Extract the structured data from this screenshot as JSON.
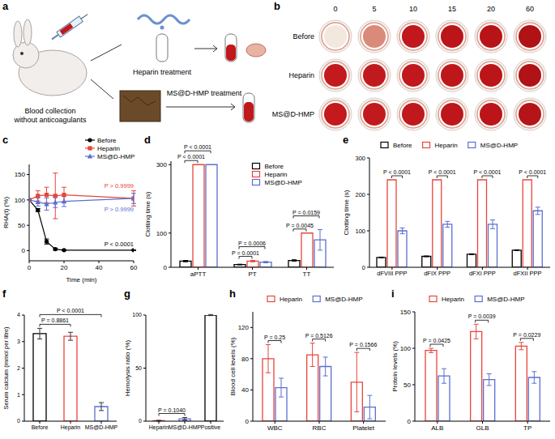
{
  "panels": {
    "a": {
      "panel": "a",
      "top_label": "Heparin treatment",
      "bottom_label": "MS@D-HMP treatment",
      "source_label": [
        "Blood collection",
        "without anticoagulants"
      ]
    },
    "b": {
      "panel": "b",
      "columns": [
        0,
        5,
        10,
        15,
        20,
        60
      ],
      "rows": [
        "Before",
        "Heparin",
        "MS@D-HMP"
      ]
    }
  },
  "chart_data": [
    {
      "panel": "c",
      "type": "line",
      "x_label": "Time (min)",
      "y_label": "RHA(t) (%)",
      "x": [
        0,
        5,
        10,
        15,
        20,
        60
      ],
      "xlim": [
        0,
        60
      ],
      "xticks": [
        0,
        20,
        40,
        60
      ],
      "ylim": [
        -20,
        170
      ],
      "yticks": [
        0,
        50,
        100,
        150
      ],
      "legend": "top-right",
      "series": [
        {
          "name": "Before",
          "color": "#000000",
          "marker": "circle",
          "values": [
            100,
            80,
            18,
            3,
            1,
            1
          ],
          "errors": [
            0,
            3,
            5,
            2,
            1,
            1
          ],
          "annotation": "P < 0.0001"
        },
        {
          "name": "Heparin",
          "color": "#e8453c",
          "marker": "square",
          "values": [
            100,
            108,
            110,
            108,
            110,
            103
          ],
          "errors": [
            0,
            10,
            15,
            45,
            15,
            15
          ],
          "annotation": "P > 0.9999"
        },
        {
          "name": "MS@D-HMP",
          "color": "#5b6fd0",
          "marker": "triangle",
          "values": [
            100,
            96,
            92,
            95,
            97,
            103
          ],
          "errors": [
            0,
            8,
            12,
            10,
            10,
            10
          ],
          "annotation": "P > 0.9999"
        }
      ]
    },
    {
      "panel": "d",
      "type": "bar",
      "y_label": "Clotting time (s)",
      "categories": [
        "aPTT",
        "PT",
        "TT"
      ],
      "ylim": [
        0,
        310
      ],
      "yticks": [
        0,
        100,
        300
      ],
      "legend": "top",
      "series": [
        {
          "name": "Before",
          "color": "#000000",
          "values": [
            18,
            8,
            20
          ],
          "errors": [
            2,
            1,
            2
          ]
        },
        {
          "name": "Heparin",
          "color": "#e8453c",
          "values": [
            300,
            18,
            100
          ],
          "errors": [
            0,
            2,
            0
          ]
        },
        {
          "name": "MS@D-HMP",
          "color": "#5b6fd0",
          "values": [
            300,
            15,
            80
          ],
          "errors": [
            0,
            2,
            30
          ]
        }
      ],
      "comparisons": [
        {
          "category": "aPTT",
          "pair": [
            "Before",
            "Heparin"
          ],
          "text": "P < 0.0001"
        },
        {
          "category": "aPTT",
          "pair": [
            "Before",
            "MS@D-HMP"
          ],
          "text": "P < 0.0001"
        },
        {
          "category": "PT",
          "pair": [
            "Before",
            "Heparin"
          ],
          "text": "P = 0.0001"
        },
        {
          "category": "PT",
          "pair": [
            "Before",
            "MS@D-HMP"
          ],
          "text": "P = 0.0006"
        },
        {
          "category": "TT",
          "pair": [
            "Before",
            "Heparin"
          ],
          "text": "P = 0.0045"
        },
        {
          "category": "TT",
          "pair": [
            "Before",
            "MS@D-HMP"
          ],
          "text": "P = 0.0159"
        }
      ]
    },
    {
      "panel": "e",
      "type": "bar",
      "y_label": "Clotting time (s)",
      "categories": [
        "dFVIII PPP",
        "dFIX PPP",
        "dFXI PPP",
        "dFXII PPP"
      ],
      "ylim": [
        0,
        300
      ],
      "yticks": [
        0,
        100,
        200,
        300
      ],
      "legend": "top-left",
      "series": [
        {
          "name": "Before",
          "color": "#000000",
          "values": [
            27,
            30,
            36,
            47
          ],
          "errors": [
            1,
            1,
            1,
            1
          ]
        },
        {
          "name": "Heparin",
          "color": "#e8453c",
          "values": [
            240,
            240,
            240,
            240
          ],
          "errors": [
            0,
            0,
            0,
            0
          ]
        },
        {
          "name": "MS@D-HMP",
          "color": "#5b6fd0",
          "values": [
            100,
            118,
            118,
            155
          ],
          "errors": [
            8,
            8,
            12,
            10
          ]
        }
      ],
      "comparisons": [
        {
          "category": "dFVIII PPP",
          "pair": [
            "Heparin",
            "MS@D-HMP"
          ],
          "text": "P < 0.0001"
        },
        {
          "category": "dFIX PPP",
          "pair": [
            "Heparin",
            "MS@D-HMP"
          ],
          "text": "P < 0.0001"
        },
        {
          "category": "dFXI PPP",
          "pair": [
            "Heparin",
            "MS@D-HMP"
          ],
          "text": "P < 0.0001"
        },
        {
          "category": "dFXII PPP",
          "pair": [
            "Heparin",
            "MS@D-HMP"
          ],
          "text": "P < 0.0001"
        }
      ]
    },
    {
      "panel": "f",
      "type": "bar",
      "y_label": "Serum calcium (mmol per litre)",
      "categories": [
        "Before",
        "Heparin",
        "MS@D-HMP"
      ],
      "values": [
        3.3,
        3.2,
        0.55
      ],
      "errors": [
        0.2,
        0.15,
        0.15
      ],
      "colors": [
        "#000000",
        "#e8453c",
        "#5b6fd0"
      ],
      "ylim": [
        0,
        4
      ],
      "yticks": [
        0,
        1,
        2,
        3,
        4
      ],
      "comparisons": [
        {
          "pair": [
            "Before",
            "Heparin"
          ],
          "text": "P = 0.8861"
        },
        {
          "pair": [
            "Before",
            "MS@D-HMP"
          ],
          "text": "P < 0.0001"
        }
      ]
    },
    {
      "panel": "g",
      "type": "bar",
      "y_label": "Hemolysis ratio (%)",
      "categories": [
        "Heparin",
        "MS@D-HMP",
        "Positive"
      ],
      "values": [
        0.5,
        2.2,
        100
      ],
      "errors": [
        0.3,
        1.2,
        0.5
      ],
      "colors": [
        "#e8453c",
        "#5b6fd0",
        "#000000"
      ],
      "ylim": [
        0,
        100
      ],
      "yticks": [
        0,
        50,
        100
      ],
      "comparisons": [
        {
          "pair": [
            "Heparin",
            "MS@D-HMP"
          ],
          "text": "P = 0.1040"
        }
      ]
    },
    {
      "panel": "h",
      "type": "bar",
      "y_label": "Blood cell levels (%)",
      "categories": [
        "WBC",
        "RBC",
        "Platelet"
      ],
      "ylim": [
        0,
        140
      ],
      "yticks": [
        0,
        40,
        80,
        120
      ],
      "legend": "top",
      "series": [
        {
          "name": "Heparin",
          "color": "#e8453c",
          "values": [
            80,
            85,
            50
          ],
          "errors": [
            18,
            15,
            38
          ]
        },
        {
          "name": "MS@D-HMP",
          "color": "#5b6fd0",
          "values": [
            43,
            70,
            18
          ],
          "errors": [
            12,
            12,
            15
          ]
        }
      ],
      "comparisons": [
        {
          "category": "WBC",
          "pair": [
            "Heparin",
            "MS@D-HMP"
          ],
          "text": "P = 0.25"
        },
        {
          "category": "RBC",
          "pair": [
            "Heparin",
            "MS@D-HMP"
          ],
          "text": "P = 0.5126"
        },
        {
          "category": "Platelet",
          "pair": [
            "Heparin",
            "MS@D-HMP"
          ],
          "text": "P = 0.1566"
        }
      ]
    },
    {
      "panel": "i",
      "type": "bar",
      "y_label": "Protein levels (%)",
      "categories": [
        "ALB",
        "GLB",
        "TP"
      ],
      "ylim": [
        0,
        150
      ],
      "yticks": [
        0,
        50,
        100,
        150
      ],
      "legend": "top",
      "series": [
        {
          "name": "Heparin",
          "color": "#e8453c",
          "values": [
            97,
            123,
            103
          ],
          "errors": [
            3,
            10,
            5
          ]
        },
        {
          "name": "MS@D-HMP",
          "color": "#5b6fd0",
          "values": [
            62,
            57,
            60
          ],
          "errors": [
            10,
            8,
            8
          ]
        }
      ],
      "comparisons": [
        {
          "category": "ALB",
          "pair": [
            "Heparin",
            "MS@D-HMP"
          ],
          "text": "P = 0.0425"
        },
        {
          "category": "GLB",
          "pair": [
            "Heparin",
            "MS@D-HMP"
          ],
          "text": "P = 0.0039"
        },
        {
          "category": "TP",
          "pair": [
            "Heparin",
            "MS@D-HMP"
          ],
          "text": "P = 0.0229"
        }
      ]
    }
  ]
}
